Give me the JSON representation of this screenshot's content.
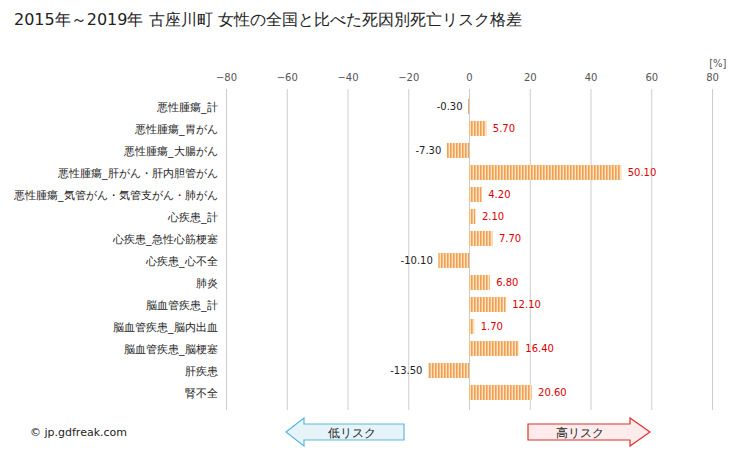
{
  "chart_data": {
    "type": "bar",
    "orientation": "horizontal",
    "title": "2015年～2019年 古座川町 女性の全国と比べた死因別死亡リスク格差",
    "x_label": "[%]",
    "categories": [
      "悪性腫瘍_計",
      "悪性腫瘍_胃がん",
      "悪性腫瘍_大腸がん",
      "悪性腫瘍_肝がん・肝内胆管がん",
      "悪性腫瘍_気管がん・気管支がん・肺がん",
      "心疾患_計",
      "心疾患_急性心筋梗塞",
      "心疾患_心不全",
      "肺炎",
      "脳血管疾患_計",
      "脳血管疾患_脳内出血",
      "脳血管疾患_脳梗塞",
      "肝疾患",
      "腎不全"
    ],
    "values": [
      -0.3,
      5.7,
      -7.3,
      50.1,
      4.2,
      2.1,
      7.7,
      -10.1,
      6.8,
      12.1,
      1.7,
      16.4,
      -13.5,
      20.6
    ],
    "value_labels": [
      "-0.30",
      "5.70",
      "-7.30",
      "50.10",
      "4.20",
      "2.10",
      "7.70",
      "-10.10",
      "6.80",
      "12.10",
      "1.70",
      "16.40",
      "-13.50",
      "20.60"
    ],
    "data_labels": true,
    "color": "#f0a050",
    "xlim": [
      -80,
      80
    ],
    "xticks": [
      -80,
      -60,
      -40,
      -20,
      0,
      20,
      40,
      60,
      80
    ],
    "grid": true,
    "annotations": [
      "© jp.gdfreak.com",
      "低リスク",
      "高リスク"
    ]
  }
}
